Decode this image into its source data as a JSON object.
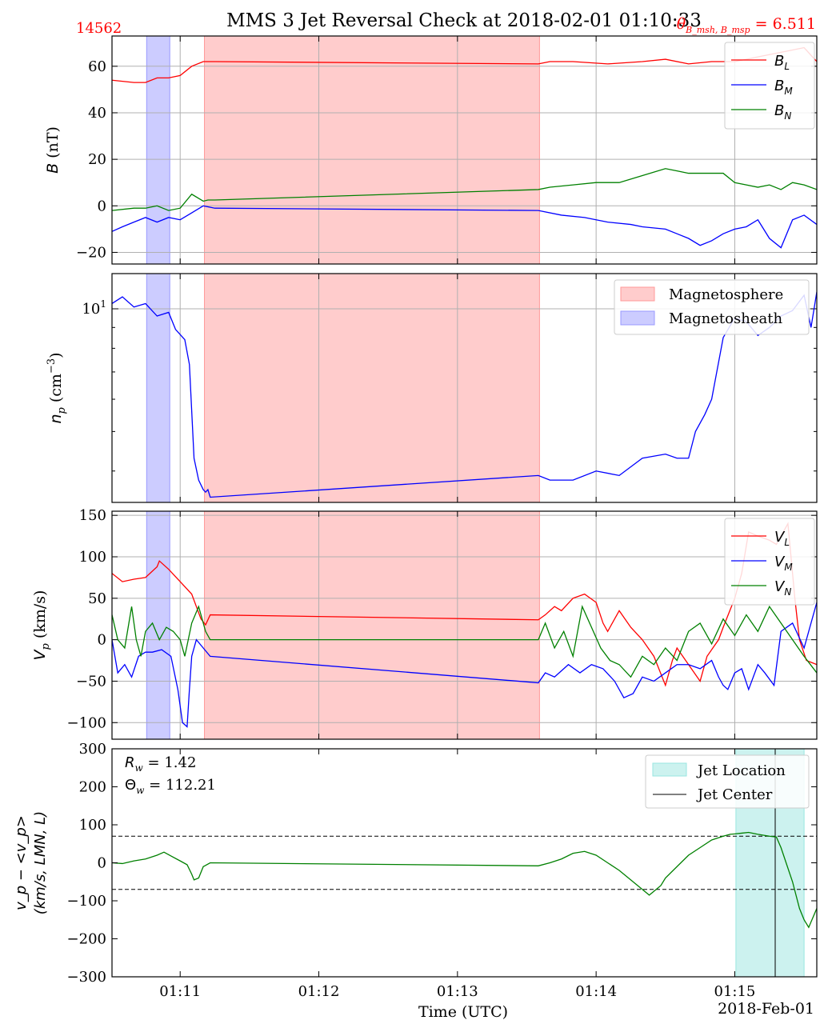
{
  "figure": {
    "title": "MMS 3 Jet Reversal Check at 2018-02-01 01:10:33",
    "event_id": "14562",
    "theta_label": "θ",
    "theta_sub": "B_msh, B_msp",
    "theta_value": " = 6.511",
    "xlabel": "Time (UTC)",
    "date_label": "2018-Feb-01",
    "x_ticks": [
      "01:11",
      "01:12",
      "01:13",
      "01:14",
      "01:15"
    ],
    "x_tick_min": [
      660,
      720,
      780,
      840,
      900
    ],
    "x_range_min": [
      630.5,
      935.5
    ],
    "colors": {
      "red": "#ff0000",
      "blue": "#0000ff",
      "green": "#008000",
      "magnetosphere": "#ff9999",
      "magnetosheath": "#9999ff",
      "jet": "#99e6e0"
    }
  },
  "chart_data": [
    {
      "type": "line",
      "panel": "magnetic_field",
      "ylabel": "B (nT)",
      "ylim": [
        -25,
        73
      ],
      "yticks": [
        -20,
        0,
        20,
        40,
        60
      ],
      "grid": true,
      "legend": "top-right",
      "shaded_regions": [
        {
          "name": "Magnetosheath",
          "x": [
            645.5,
            655.5
          ],
          "color": "#9999ff"
        },
        {
          "name": "Magnetosphere",
          "x": [
            670.5,
            815.5
          ],
          "color": "#ff9999"
        }
      ],
      "series": [
        {
          "name": "B_L",
          "label_main": "B",
          "label_sub": "L",
          "color": "#ff0000",
          "x": [
            630.5,
            640,
            645,
            650,
            655,
            660,
            665,
            670,
            675,
            815,
            820,
            830,
            845,
            860,
            870,
            880,
            890,
            900,
            905,
            910,
            915,
            920,
            925,
            930,
            935.5
          ],
          "y": [
            54,
            53,
            53,
            55,
            55,
            56,
            60,
            62,
            62,
            61,
            62,
            62,
            61,
            62,
            63,
            61,
            62,
            62,
            63,
            64,
            65,
            66,
            67,
            68,
            62
          ]
        },
        {
          "name": "B_M",
          "label_main": "B",
          "label_sub": "M",
          "color": "#0000ff",
          "x": [
            630.5,
            635,
            640,
            645,
            650,
            655,
            660,
            665,
            670,
            675,
            815,
            825,
            835,
            845,
            855,
            860,
            870,
            875,
            880,
            885,
            890,
            895,
            900,
            905,
            910,
            915,
            920,
            925,
            930,
            935.5
          ],
          "y": [
            -11,
            -9,
            -7,
            -5,
            -7,
            -5,
            -6,
            -3,
            0,
            -1,
            -2,
            -4,
            -5,
            -7,
            -8,
            -9,
            -10,
            -12,
            -14,
            -17,
            -15,
            -12,
            -10,
            -9,
            -6,
            -14,
            -18,
            -6,
            -4,
            -8
          ]
        },
        {
          "name": "B_N",
          "label_main": "B",
          "label_sub": "N",
          "color": "#008000",
          "x": [
            630.5,
            640,
            645,
            650,
            655,
            660,
            665,
            670,
            672,
            675,
            815,
            820,
            830,
            840,
            850,
            860,
            870,
            875,
            880,
            890,
            895,
            900,
            905,
            910,
            915,
            920,
            925,
            930,
            935.5
          ],
          "y": [
            -2,
            -1,
            -1,
            0,
            -2,
            -1,
            5,
            2,
            2.5,
            2.5,
            7,
            8,
            9,
            10,
            10,
            13,
            16,
            15,
            14,
            14,
            14,
            10,
            9,
            8,
            9,
            7,
            10,
            9,
            7
          ]
        }
      ]
    },
    {
      "type": "line",
      "panel": "density",
      "ylabel_main": "n",
      "ylabel_sub": "p",
      "ylabel_units": " (cm",
      "ylabel_exp": "−3",
      "ylabel_end": ")",
      "ylog": true,
      "ylim": [
        3.35,
        12.2
      ],
      "major_tick_value": 10,
      "major_tick_label_base": "10",
      "major_tick_label_exp": "1",
      "minor_ticks": [
        4,
        5,
        6,
        7,
        8,
        9
      ],
      "grid": true,
      "legend": "top-right",
      "legend_entries": [
        {
          "name": "Magnetosphere",
          "color": "#ff9999"
        },
        {
          "name": "Magnetosheath",
          "color": "#9999ff"
        }
      ],
      "shaded_regions": [
        {
          "name": "Magnetosheath",
          "x": [
            645.5,
            655.5
          ],
          "color": "#9999ff"
        },
        {
          "name": "Magnetosphere",
          "x": [
            670.5,
            815.5
          ],
          "color": "#ff9999"
        }
      ],
      "series": [
        {
          "name": "n_p",
          "color": "#0000ff",
          "x": [
            630.5,
            635,
            640,
            645,
            650,
            655,
            658,
            662,
            664,
            666,
            668,
            670,
            671,
            672,
            673,
            815,
            820,
            830,
            840,
            850,
            860,
            870,
            875,
            880,
            883,
            887,
            890,
            895,
            900,
            905,
            910,
            915,
            920,
            925,
            930,
            933,
            935.5
          ],
          "y": [
            10.3,
            10.7,
            10.1,
            10.3,
            9.6,
            9.8,
            8.9,
            8.4,
            7.3,
            4.3,
            3.8,
            3.6,
            3.55,
            3.6,
            3.45,
            3.9,
            3.8,
            3.8,
            4.0,
            3.9,
            4.3,
            4.4,
            4.3,
            4.3,
            5.0,
            5.5,
            6.0,
            8.5,
            9.5,
            9.3,
            8.6,
            9.0,
            9.6,
            9.9,
            10.8,
            9.0,
            11.0
          ]
        }
      ]
    },
    {
      "type": "line",
      "panel": "velocity",
      "ylabel_main": "V",
      "ylabel_sub": "p",
      "ylabel_units": " (km/s)",
      "ylim": [
        -120,
        155
      ],
      "yticks": [
        -100,
        -50,
        0,
        50,
        100,
        150
      ],
      "grid": true,
      "legend": "top-right",
      "shaded_regions": [
        {
          "name": "Magnetosheath",
          "x": [
            645.5,
            655.5
          ],
          "color": "#9999ff"
        },
        {
          "name": "Magnetosphere",
          "x": [
            670.5,
            815.5
          ],
          "color": "#ff9999"
        }
      ],
      "series": [
        {
          "name": "V_L",
          "label_main": "V",
          "label_sub": "L",
          "color": "#ff0000",
          "x": [
            630.5,
            635,
            640,
            645,
            650,
            651,
            655,
            660,
            665,
            667,
            669,
            671,
            673,
            815,
            818,
            822,
            825,
            830,
            835,
            840,
            843,
            845,
            850,
            855,
            860,
            865,
            870,
            873,
            875,
            880,
            885,
            888,
            893,
            895,
            900,
            903,
            906,
            910,
            915,
            918,
            920,
            923,
            926,
            928,
            931,
            935.5
          ],
          "y": [
            80,
            70,
            73,
            75,
            88,
            95,
            85,
            70,
            55,
            40,
            25,
            18,
            30,
            24,
            30,
            40,
            35,
            50,
            55,
            45,
            20,
            10,
            35,
            15,
            0,
            -20,
            -55,
            -25,
            -10,
            -30,
            -50,
            -20,
            0,
            15,
            50,
            80,
            130,
            125,
            120,
            115,
            125,
            140,
            50,
            0,
            -25,
            -30
          ]
        },
        {
          "name": "V_M",
          "label_main": "V",
          "label_sub": "M",
          "color": "#0000ff",
          "x": [
            630.5,
            633,
            636,
            639,
            642,
            645,
            648,
            652,
            656,
            659,
            661,
            663,
            664,
            665,
            667,
            670,
            673,
            815,
            818,
            822,
            828,
            833,
            838,
            843,
            848,
            852,
            856,
            860,
            865,
            870,
            875,
            880,
            885,
            890,
            893,
            895,
            897,
            900,
            903,
            906,
            910,
            913,
            917,
            920,
            925,
            930,
            935.5
          ],
          "y": [
            0,
            -40,
            -30,
            -45,
            -20,
            -15,
            -15,
            -12,
            -20,
            -60,
            -100,
            -105,
            -60,
            -20,
            0,
            -10,
            -20,
            -52,
            -40,
            -45,
            -30,
            -40,
            -30,
            -35,
            -50,
            -70,
            -65,
            -45,
            -50,
            -40,
            -30,
            -30,
            -35,
            -25,
            -45,
            -55,
            -60,
            -40,
            -35,
            -60,
            -30,
            -40,
            -55,
            10,
            20,
            -10,
            45
          ]
        },
        {
          "name": "V_N",
          "label_main": "V",
          "label_sub": "N",
          "color": "#008000",
          "x": [
            630.5,
            633,
            636,
            639,
            641,
            643,
            645,
            648,
            651,
            654,
            657,
            660,
            662,
            665,
            668,
            671,
            673,
            815,
            818,
            822,
            826,
            830,
            834,
            838,
            842,
            846,
            850,
            855,
            860,
            865,
            870,
            875,
            880,
            885,
            890,
            895,
            900,
            905,
            910,
            915,
            920,
            925,
            930,
            935.5
          ],
          "y": [
            30,
            0,
            -10,
            40,
            0,
            -20,
            10,
            20,
            0,
            15,
            10,
            0,
            -20,
            20,
            40,
            10,
            0,
            0,
            20,
            -10,
            10,
            -20,
            40,
            15,
            -10,
            -25,
            -30,
            -45,
            -20,
            -30,
            -10,
            -25,
            10,
            20,
            -5,
            25,
            5,
            30,
            10,
            40,
            20,
            0,
            -20,
            -40
          ]
        }
      ]
    },
    {
      "type": "line",
      "panel": "velocity_deviation",
      "ylabel_line1": "v_p − <v_p>",
      "ylabel_line2": "(km/s, LMN, L)",
      "ylim": [
        -300,
        300
      ],
      "yticks": [
        -300,
        -200,
        -100,
        0,
        100,
        200,
        300
      ],
      "grid": false,
      "legend": "top-right",
      "annotation_rw": "R",
      "annotation_rw_sub": "w",
      "annotation_rw_value": " = 1.42",
      "annotation_theta": "Θ",
      "annotation_theta_sub": "w",
      "annotation_theta_value": " = 112.21",
      "threshold_lines": [
        70,
        -70
      ],
      "jet_location": {
        "name": "Jet Location",
        "x": [
          900.5,
          930
        ],
        "color": "#99e6e0"
      },
      "jet_center": {
        "name": "Jet Center",
        "x": 917.5
      },
      "series": [
        {
          "name": "deviation",
          "color": "#008000",
          "x": [
            630.5,
            635,
            640,
            645,
            650,
            653,
            656,
            660,
            663,
            665,
            666,
            668,
            670,
            673,
            815,
            820,
            825,
            830,
            835,
            840,
            845,
            850,
            855,
            860,
            863,
            865,
            868,
            870,
            875,
            880,
            885,
            890,
            895,
            898,
            900,
            903,
            906,
            910,
            915,
            918,
            920,
            925,
            928,
            930,
            932,
            935.5
          ],
          "y": [
            0,
            -2,
            5,
            10,
            20,
            28,
            18,
            5,
            -5,
            -30,
            -45,
            -40,
            -10,
            0,
            -8,
            0,
            10,
            25,
            30,
            20,
            0,
            -20,
            -45,
            -70,
            -85,
            -75,
            -60,
            -40,
            -10,
            20,
            40,
            60,
            70,
            75,
            76,
            78,
            80,
            75,
            70,
            68,
            40,
            -50,
            -120,
            -150,
            -170,
            -120
          ]
        }
      ]
    }
  ]
}
